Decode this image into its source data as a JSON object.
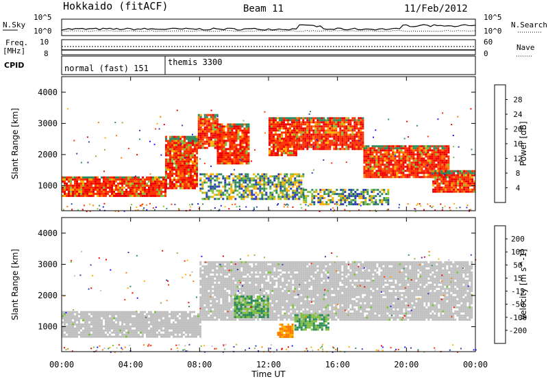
{
  "header": {
    "station": "Hokkaido (fitACF)",
    "beam": "Beam 11",
    "date": "11/Feb/2012"
  },
  "strip": {
    "nsky_label": "N.Sky",
    "nsearch_label": "N.Search",
    "noise_tick_hi": "10^5",
    "noise_tick_lo": "10^0",
    "freq_label": "Freq.",
    "freq_unit": "[MHz]",
    "freq_ticks": [
      "10",
      "8"
    ],
    "nave_label": "Nave",
    "nave_ticks": [
      "60",
      "0"
    ],
    "cpid_label": "CPID",
    "cpid_segments": [
      {
        "label": "normal (fast) 151",
        "start_hour": 0,
        "end_hour": 6
      },
      {
        "label": "themis 3300",
        "start_hour": 6,
        "end_hour": 24
      }
    ]
  },
  "chart_data": [
    {
      "type": "heatmap",
      "title": "",
      "xlabel": "Time UT",
      "ylabel": "Slant Range [km]",
      "x_range_hours": [
        0,
        24
      ],
      "x_tick_labels": [
        "00:00",
        "04:00",
        "08:00",
        "12:00",
        "16:00",
        "20:00",
        "00:00"
      ],
      "y_range_km": [
        200,
        4500
      ],
      "y_ticks": [
        1000,
        2000,
        3000,
        4000
      ],
      "colorbar": {
        "label": "Power [dB]",
        "ticks": [
          4,
          8,
          12,
          16,
          20,
          24,
          28
        ],
        "colors": [
          "#1a1aff",
          "#2b3fb0",
          "#2f8a5c",
          "#7fbf3f",
          "#ffb000",
          "#ff7a00",
          "#ff3000",
          "#ee0000"
        ]
      },
      "echo_regions": [
        {
          "t0": 0.0,
          "t1": 6.0,
          "r0": 700,
          "r1": 1300,
          "level": "strong"
        },
        {
          "t0": 6.0,
          "t1": 7.9,
          "r0": 900,
          "r1": 2600,
          "level": "strong"
        },
        {
          "t0": 7.9,
          "t1": 9.0,
          "r0": 2200,
          "r1": 3300,
          "level": "strong"
        },
        {
          "t0": 9.0,
          "t1": 10.8,
          "r0": 1700,
          "r1": 3000,
          "level": "strong"
        },
        {
          "t0": 12.0,
          "t1": 13.6,
          "r0": 2000,
          "r1": 3200,
          "level": "strong"
        },
        {
          "t0": 13.6,
          "t1": 17.5,
          "r0": 2200,
          "r1": 3200,
          "level": "strong"
        },
        {
          "t0": 17.5,
          "t1": 22.5,
          "r0": 1300,
          "r1": 2300,
          "level": "strong"
        },
        {
          "t0": 21.5,
          "t1": 24.0,
          "r0": 800,
          "r1": 1500,
          "level": "strong"
        },
        {
          "t0": 8.0,
          "t1": 14.0,
          "r0": 600,
          "r1": 1400,
          "level": "weak"
        },
        {
          "t0": 14.0,
          "t1": 19.0,
          "r0": 400,
          "r1": 900,
          "level": "weak"
        }
      ]
    },
    {
      "type": "heatmap",
      "title": "",
      "xlabel": "Time UT",
      "ylabel": "Slant Range [km]",
      "x_range_hours": [
        0,
        24
      ],
      "x_tick_labels": [
        "00:00",
        "04:00",
        "08:00",
        "12:00",
        "16:00",
        "20:00",
        "00:00"
      ],
      "y_range_km": [
        200,
        4500
      ],
      "y_ticks": [
        1000,
        2000,
        3000,
        4000
      ],
      "colorbar": {
        "label": "Velocity [m s^-1]",
        "ticks": [
          200,
          100,
          50,
          15,
          -15,
          -50,
          -100,
          -200
        ],
        "colors": [
          "#1a1aff",
          "#2b3fb0",
          "#2f8a5c",
          "#7fbf3f",
          "#bfbfbf",
          "#ffb000",
          "#ff7a00",
          "#ff3000",
          "#ee0000"
        ]
      },
      "echo_regions": [
        {
          "t0": 0.0,
          "t1": 8.0,
          "r0": 700,
          "r1": 1500,
          "level": "ground"
        },
        {
          "t0": 8.0,
          "t1": 23.8,
          "r0": 1200,
          "r1": 3100,
          "level": "ground"
        },
        {
          "t0": 10.0,
          "t1": 12.0,
          "r0": 1300,
          "r1": 2000,
          "level": "positive"
        },
        {
          "t0": 13.5,
          "t1": 15.5,
          "r0": 900,
          "r1": 1400,
          "level": "positive"
        },
        {
          "t0": 12.5,
          "t1": 13.4,
          "r0": 700,
          "r1": 1100,
          "level": "negative"
        }
      ]
    }
  ]
}
